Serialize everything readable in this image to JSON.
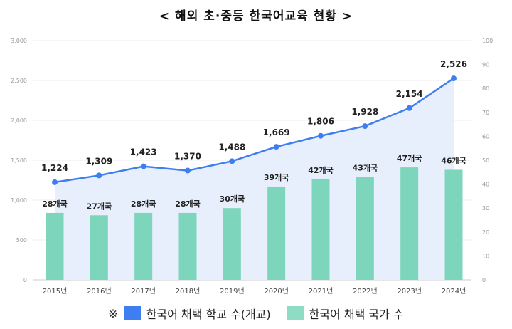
{
  "title": "< 해외 초·중등 한국어교육 현황 >",
  "chart_data": {
    "type": "bar+line",
    "categories": [
      "2015년",
      "2016년",
      "2017년",
      "2018년",
      "2019년",
      "2020년",
      "2021년",
      "2022년",
      "2023년",
      "2024년"
    ],
    "series": [
      {
        "name": "한국어 채택 학교 수(개교)",
        "type": "line",
        "axis": "left",
        "color": "#3e7ef0",
        "values": [
          1224,
          1309,
          1423,
          1370,
          1488,
          1669,
          1806,
          1928,
          2154,
          2526
        ],
        "labels": [
          "1,224",
          "1,309",
          "1,423",
          "1,370",
          "1,488",
          "1,669",
          "1,806",
          "1,928",
          "2,154",
          "2,526"
        ]
      },
      {
        "name": "한국어 채택 국가 수",
        "type": "bar",
        "axis": "right",
        "color": "#7dd6bb",
        "values": [
          28,
          27,
          28,
          28,
          30,
          39,
          42,
          43,
          47,
          46
        ],
        "labels": [
          "28개국",
          "27개국",
          "28개국",
          "28개국",
          "30개국",
          "39개국",
          "42개국",
          "43개국",
          "47개국",
          "46개국"
        ]
      }
    ],
    "left_axis": {
      "range": [
        0,
        3000
      ],
      "ticks": [
        "0",
        "500",
        "1,000",
        "1,500",
        "2,000",
        "2,500",
        "3,000"
      ]
    },
    "right_axis": {
      "range": [
        0,
        100
      ],
      "ticks": [
        "0",
        "10",
        "20",
        "30",
        "40",
        "50",
        "60",
        "70",
        "80",
        "90",
        "100"
      ]
    },
    "grid": true,
    "legend_position": "bottom",
    "legend_prefix": "※"
  }
}
